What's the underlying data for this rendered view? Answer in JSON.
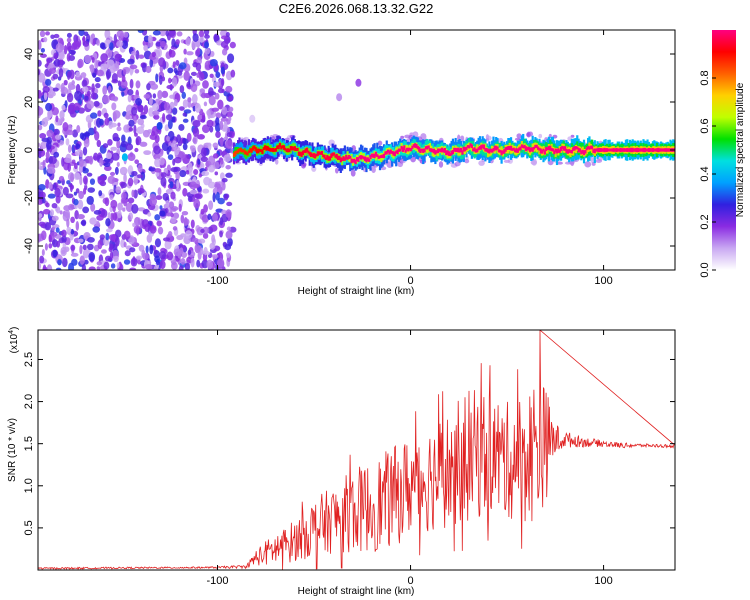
{
  "title": "C2E6.2026.068.13.32.G22",
  "colors": {
    "snr_line": "#e02020",
    "frame": "#000000",
    "scatter_base": "#6a1fd8"
  },
  "chart_data": [
    {
      "type": "heatmap",
      "name": "spectrogram",
      "xlabel": "Height of straight line (km)",
      "ylabel": "Frequency (Hz)",
      "xlim": [
        -193,
        137
      ],
      "ylim": [
        -50,
        50
      ],
      "x_ticks": [
        -100,
        0,
        100
      ],
      "x_tick_labels": [
        "-100",
        "0",
        "100"
      ],
      "y_ticks": [
        -40,
        -20,
        0,
        20,
        40
      ],
      "y_tick_labels": [
        "-40",
        "-20",
        "0",
        "20",
        "40"
      ],
      "colorbar": {
        "label": "Normalized spectral amplitude",
        "range": [
          0,
          1
        ],
        "ticks": [
          0.0,
          0.2,
          0.4,
          0.6,
          0.8
        ],
        "tick_labels": [
          "0.0",
          "0.2",
          "0.4",
          "0.6",
          "0.8"
        ],
        "colormap": [
          "#ffffff",
          "#c9a8f2",
          "#8a2be2",
          "#3020e0",
          "#00a0ff",
          "#00e0e0",
          "#00e000",
          "#c0ff00",
          "#ffd000",
          "#ff6000",
          "#ff0000",
          "#ff0080"
        ]
      },
      "noise_region_x": [
        -193,
        -92
      ],
      "ridge": {
        "x": [
          -92,
          -80,
          -65,
          -50,
          -40,
          -30,
          -20,
          -10,
          0,
          10,
          20,
          30,
          40,
          50,
          60,
          70,
          80,
          90,
          100,
          110,
          120,
          137
        ],
        "freq": [
          -1,
          0,
          1,
          -2,
          -3,
          -4,
          -3,
          -1,
          1,
          0,
          -1,
          1,
          0,
          0,
          1,
          0,
          0,
          0,
          0,
          0,
          0,
          0
        ],
        "amplitude": [
          0.4,
          0.5,
          0.55,
          0.6,
          0.6,
          0.7,
          0.7,
          0.75,
          0.8,
          0.8,
          0.8,
          0.85,
          0.85,
          0.9,
          0.9,
          0.95,
          0.95,
          1.0,
          1.0,
          1.0,
          1.0,
          1.0
        ]
      },
      "outlier_blobs": [
        {
          "x": -148,
          "freq": -3,
          "amplitude": 0.4
        },
        {
          "x": -130,
          "freq": 10,
          "amplitude": 0.3
        },
        {
          "x": -27,
          "freq": 28,
          "amplitude": 0.15
        },
        {
          "x": -37,
          "freq": 22,
          "amplitude": 0.1
        },
        {
          "x": -82,
          "freq": 13,
          "amplitude": 0.05
        }
      ]
    },
    {
      "type": "line",
      "name": "snr",
      "xlabel": "Height of straight line (km)",
      "ylabel": "SNR (10 * v/v)",
      "y_multiplier": "(x10",
      "y_multiplier_exp": "4",
      "y_multiplier_close": ")",
      "xlim": [
        -193,
        137
      ],
      "ylim": [
        0,
        2.85
      ],
      "x_ticks": [
        -100,
        0,
        100
      ],
      "x_tick_labels": [
        "-100",
        "0",
        "100"
      ],
      "y_ticks": [
        0.5,
        1.0,
        1.5,
        2.0,
        2.5
      ],
      "y_tick_labels": [
        "0.5",
        "1.0",
        "1.5",
        "2.0",
        "2.5"
      ],
      "envelope": {
        "x": [
          -193,
          -100,
          -85,
          -80,
          -70,
          -60,
          -50,
          -40,
          -30,
          -20,
          -10,
          0,
          10,
          20,
          30,
          40,
          50,
          60,
          65,
          70,
          75,
          80,
          90,
          100,
          110,
          120,
          137
        ],
        "mean": [
          0.02,
          0.03,
          0.04,
          0.15,
          0.25,
          0.35,
          0.5,
          0.6,
          0.7,
          0.75,
          0.85,
          1.0,
          1.1,
          1.2,
          1.35,
          1.4,
          1.3,
          1.35,
          1.45,
          1.5,
          1.55,
          1.55,
          1.52,
          1.5,
          1.48,
          1.48,
          1.47
        ],
        "spread": [
          0.01,
          0.01,
          0.02,
          0.1,
          0.2,
          0.25,
          0.35,
          0.4,
          0.5,
          0.55,
          0.6,
          0.6,
          0.65,
          0.7,
          0.8,
          0.75,
          0.7,
          0.8,
          0.9,
          0.7,
          0.2,
          0.1,
          0.06,
          0.04,
          0.03,
          0.02,
          0.02
        ]
      },
      "peak": {
        "x": 67,
        "y": 2.85
      }
    }
  ]
}
